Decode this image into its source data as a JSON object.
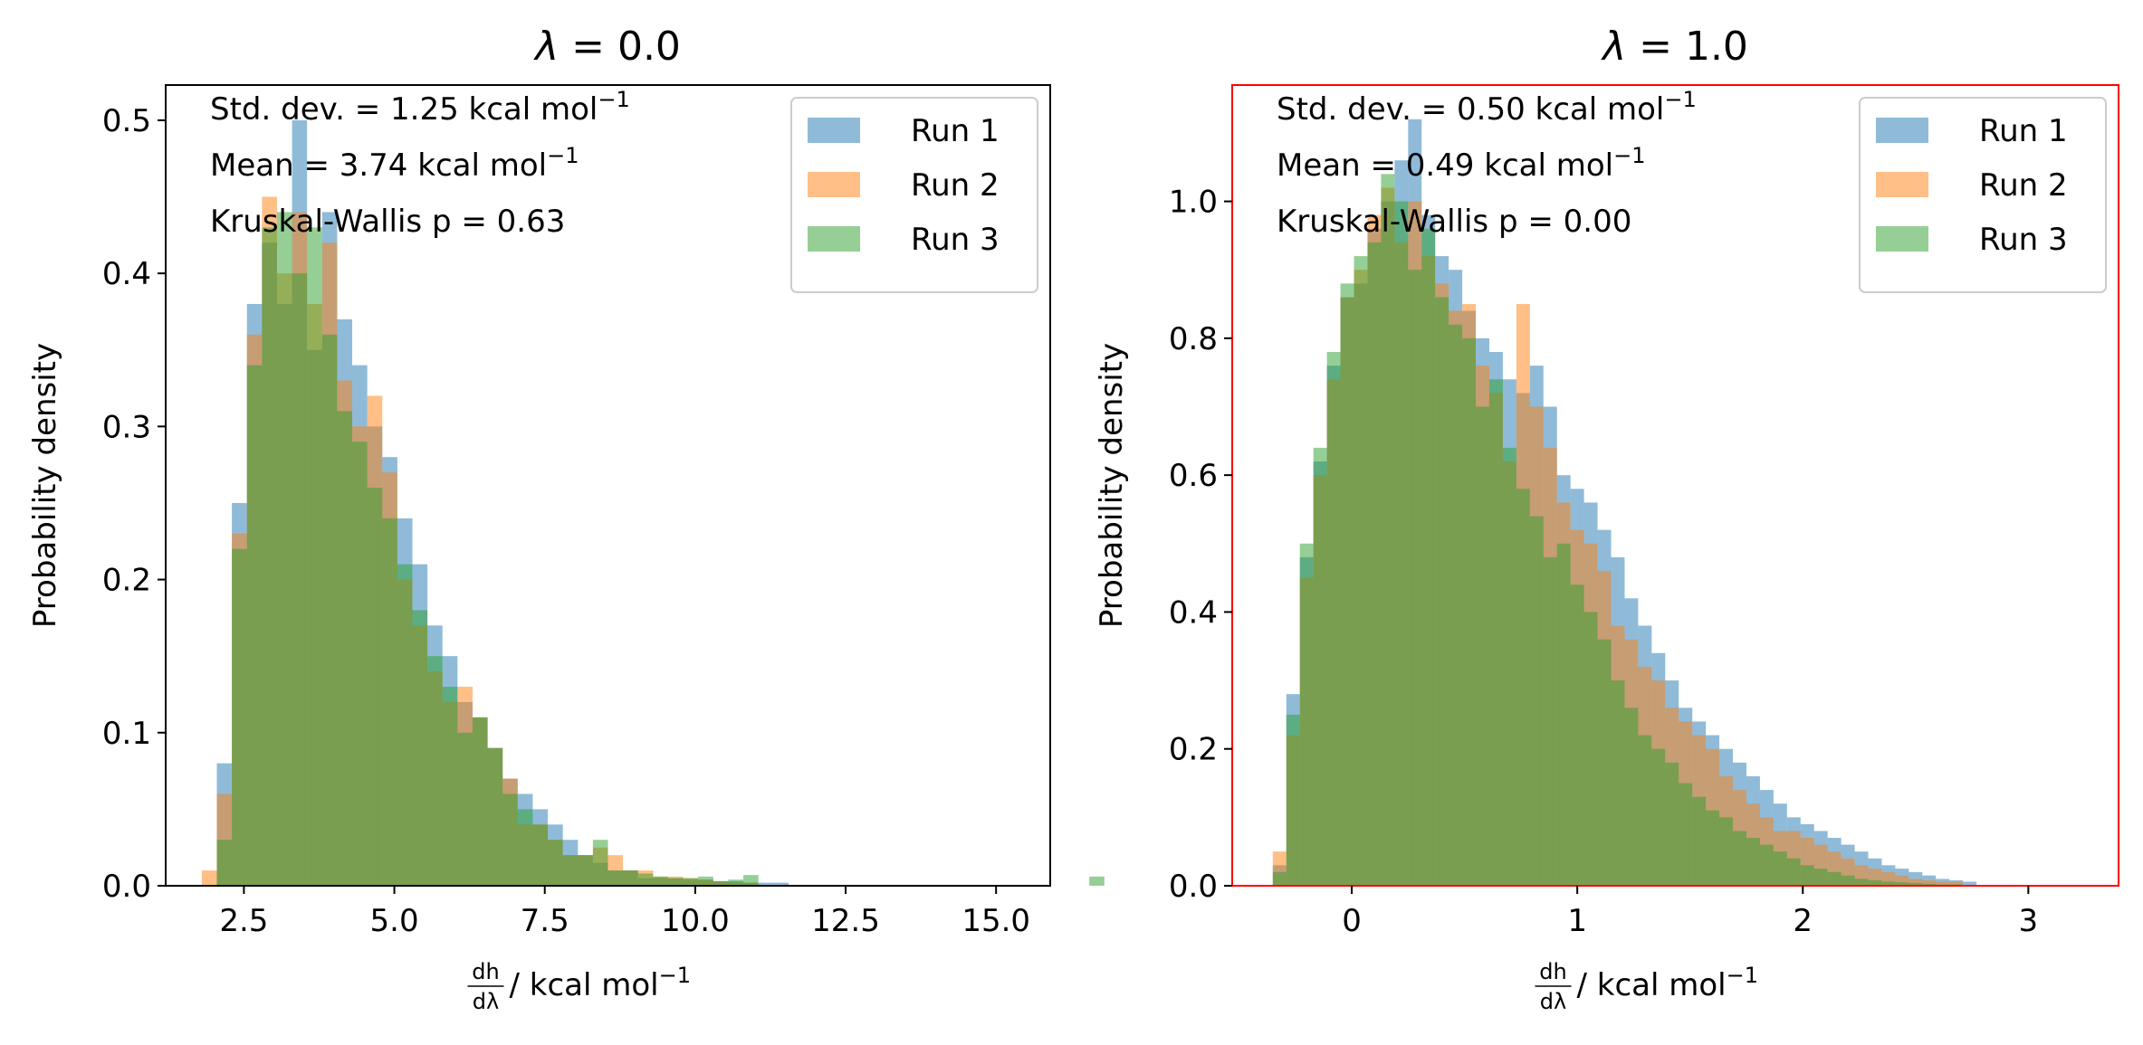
{
  "chart_data": [
    {
      "type": "bar",
      "title_symbol": "λ",
      "title_value": " = 0.0",
      "xlabel_frac_num": "dh",
      "xlabel_frac_den": "dλ",
      "xlabel_unit": " / kcal mol",
      "xlabel_sup": "−1",
      "ylabel": "Probability density",
      "xlim": [
        1.2,
        15.9
      ],
      "ylim": [
        0,
        0.523
      ],
      "xticks": [
        2.5,
        5.0,
        7.5,
        10.0,
        12.5,
        15.0
      ],
      "xtick_labels": [
        "2.5",
        "5.0",
        "7.5",
        "10.0",
        "12.5",
        "15.0"
      ],
      "yticks": [
        0.0,
        0.1,
        0.2,
        0.3,
        0.4,
        0.5
      ],
      "ytick_labels": [
        "0.0",
        "0.1",
        "0.2",
        "0.3",
        "0.4",
        "0.5"
      ],
      "annotations": [
        {
          "text": "Std. dev. = 1.25 kcal mol",
          "sup": "−1"
        },
        {
          "text": "Mean = 3.74 kcal mol",
          "sup": "−1"
        },
        {
          "text": "Kruskal-Wallis p = 0.63",
          "sup": ""
        }
      ],
      "legend": {
        "placement": "top-right",
        "entries": [
          "Run 1",
          "Run 2",
          "Run 3"
        ]
      },
      "highlight_frame": false,
      "bins": {
        "start": 1.8,
        "width": 0.25
      },
      "series": [
        {
          "name": "Run 1",
          "color": "#1f77b4",
          "values": [
            0.0,
            0.08,
            0.25,
            0.38,
            0.42,
            0.38,
            0.5,
            0.35,
            0.44,
            0.37,
            0.34,
            0.3,
            0.28,
            0.24,
            0.21,
            0.17,
            0.15,
            0.12,
            0.11,
            0.09,
            0.07,
            0.06,
            0.05,
            0.04,
            0.03,
            0.02,
            0.015,
            0.01,
            0.01,
            0.005,
            0.005,
            0.005,
            0.004,
            0.004,
            0.003,
            0.003,
            0.002,
            0.002,
            0.002,
            0.0,
            0.0,
            0.0,
            0.0,
            0.0,
            0.0,
            0.0,
            0.0,
            0.0,
            0.0,
            0.0,
            0.0,
            0.0,
            0.0,
            0.0,
            0.0,
            0.0,
            0.0,
            0.0,
            0.0,
            0.0
          ]
        },
        {
          "name": "Run 2",
          "color": "#ff7f0e",
          "values": [
            0.01,
            0.06,
            0.23,
            0.36,
            0.45,
            0.4,
            0.44,
            0.38,
            0.42,
            0.33,
            0.3,
            0.32,
            0.27,
            0.2,
            0.17,
            0.14,
            0.12,
            0.13,
            0.11,
            0.09,
            0.07,
            0.04,
            0.04,
            0.03,
            0.02,
            0.02,
            0.025,
            0.02,
            0.01,
            0.01,
            0.006,
            0.006,
            0.005,
            0.004,
            0.003,
            0.002,
            0.002,
            0.0,
            0.0,
            0.0,
            0.0,
            0.0,
            0.0,
            0.0,
            0.0,
            0.0,
            0.0,
            0.0,
            0.0,
            0.0,
            0.0,
            0.0,
            0.0,
            0.0,
            0.0,
            0.0,
            0.0,
            0.0,
            0.0,
            0.0
          ]
        },
        {
          "name": "Run 3",
          "color": "#2ca02c",
          "values": [
            0.0,
            0.03,
            0.22,
            0.34,
            0.43,
            0.44,
            0.4,
            0.43,
            0.36,
            0.31,
            0.29,
            0.26,
            0.24,
            0.21,
            0.18,
            0.15,
            0.13,
            0.1,
            0.11,
            0.09,
            0.06,
            0.05,
            0.04,
            0.03,
            0.02,
            0.02,
            0.03,
            0.01,
            0.01,
            0.008,
            0.006,
            0.005,
            0.005,
            0.006,
            0.003,
            0.004,
            0.007,
            0.0,
            0.0,
            0.0,
            0.0,
            0.0,
            0.0,
            0.0,
            0.0,
            0.0,
            0.0,
            0.0,
            0.0,
            0.0,
            0.0,
            0.0,
            0.0,
            0.0,
            0.0,
            0.0,
            0.0,
            0.0,
            0.0,
            0.006
          ]
        }
      ]
    },
    {
      "type": "bar",
      "title_symbol": "λ",
      "title_value": " = 1.0",
      "xlabel_frac_num": "dh",
      "xlabel_frac_den": "dλ",
      "xlabel_unit": " / kcal mol",
      "xlabel_sup": "−1",
      "ylabel": "Probability density",
      "xlim": [
        -0.53,
        3.4
      ],
      "ylim": [
        0,
        1.17
      ],
      "xticks": [
        0,
        1,
        2,
        3
      ],
      "xtick_labels": [
        "0",
        "1",
        "2",
        "3"
      ],
      "yticks": [
        0.0,
        0.2,
        0.4,
        0.6,
        0.8,
        1.0
      ],
      "ytick_labels": [
        "0.0",
        "0.2",
        "0.4",
        "0.6",
        "0.8",
        "1.0"
      ],
      "annotations": [
        {
          "text": "Std. dev. = 0.50 kcal mol",
          "sup": "−1"
        },
        {
          "text": "Mean = 0.49 kcal mol",
          "sup": "−1"
        },
        {
          "text": "Kruskal-Wallis p = 0.00",
          "sup": ""
        }
      ],
      "legend": {
        "placement": "top-right",
        "entries": [
          "Run 1",
          "Run 2",
          "Run 3"
        ]
      },
      "highlight_frame": true,
      "bins": {
        "start": -0.35,
        "width": 0.06
      },
      "series": [
        {
          "name": "Run 1",
          "color": "#1f77b4",
          "values": [
            0.03,
            0.28,
            0.48,
            0.62,
            0.76,
            0.86,
            0.88,
            0.96,
            1.0,
            1.06,
            1.12,
            0.98,
            0.92,
            0.9,
            0.84,
            0.8,
            0.78,
            0.74,
            0.72,
            0.76,
            0.7,
            0.6,
            0.58,
            0.56,
            0.52,
            0.48,
            0.42,
            0.38,
            0.34,
            0.3,
            0.26,
            0.24,
            0.22,
            0.2,
            0.18,
            0.16,
            0.14,
            0.12,
            0.1,
            0.09,
            0.08,
            0.07,
            0.06,
            0.05,
            0.04,
            0.03,
            0.025,
            0.02,
            0.015,
            0.01,
            0.008,
            0.006,
            0.0,
            0.0,
            0.0,
            0.0,
            0.0,
            0.0,
            0.0,
            0.0
          ]
        },
        {
          "name": "Run 2",
          "color": "#ff7f0e",
          "values": [
            0.05,
            0.22,
            0.45,
            0.6,
            0.74,
            0.86,
            0.9,
            0.98,
            1.02,
            0.94,
            1.0,
            0.92,
            0.88,
            0.84,
            0.85,
            0.76,
            0.72,
            0.62,
            0.85,
            0.7,
            0.64,
            0.56,
            0.52,
            0.5,
            0.46,
            0.38,
            0.36,
            0.32,
            0.3,
            0.26,
            0.24,
            0.22,
            0.2,
            0.16,
            0.14,
            0.12,
            0.1,
            0.08,
            0.08,
            0.07,
            0.06,
            0.05,
            0.04,
            0.03,
            0.025,
            0.02,
            0.015,
            0.01,
            0.008,
            0.006,
            0.006,
            0.0,
            0.0,
            0.0,
            0.0,
            0.0,
            0.0,
            0.0,
            0.0,
            0.0
          ]
        },
        {
          "name": "Run 3",
          "color": "#2ca02c",
          "values": [
            0.02,
            0.25,
            0.5,
            0.64,
            0.78,
            0.88,
            0.92,
            0.94,
            1.04,
            1.0,
            0.9,
            0.96,
            0.86,
            0.82,
            0.8,
            0.7,
            0.74,
            0.64,
            0.58,
            0.54,
            0.48,
            0.5,
            0.44,
            0.4,
            0.36,
            0.3,
            0.26,
            0.22,
            0.2,
            0.18,
            0.15,
            0.13,
            0.11,
            0.1,
            0.08,
            0.07,
            0.06,
            0.05,
            0.04,
            0.03,
            0.025,
            0.02,
            0.015,
            0.01,
            0.008,
            0.006,
            0.005,
            0.004,
            0.003,
            0.002,
            0.002,
            0.0,
            0.0,
            0.0,
            0.0,
            0.0,
            0.0,
            0.0,
            0.0,
            0.0
          ]
        }
      ]
    }
  ]
}
